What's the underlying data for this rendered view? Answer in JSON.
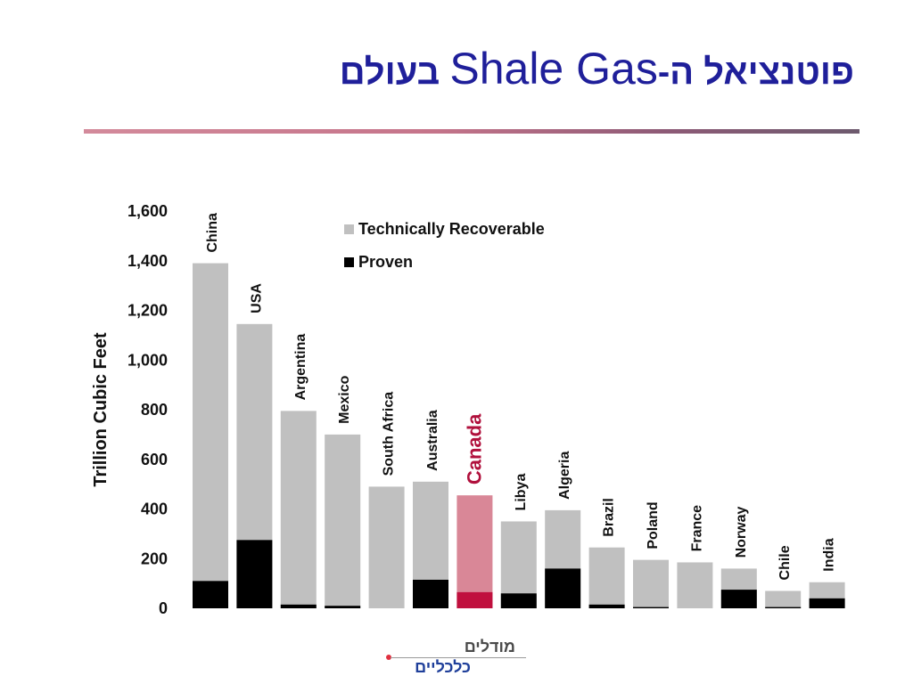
{
  "slide": {
    "title_he_prefix": "פוטנציאל ה-",
    "title_en": "Shale Gas",
    "title_he_suffix": " בעולם"
  },
  "logo": {
    "line1": "מודלים",
    "line2": "כלכליים"
  },
  "colors": {
    "title": "#1f1f9a",
    "recoverable": "#c0c0c0",
    "proven": "#000000",
    "highlight_recoverable": "#d98797",
    "highlight_proven": "#c0103e",
    "highlight_label": "#b0103c"
  },
  "chart_data": {
    "type": "bar",
    "stacked": "overlay",
    "ylabel": "Trillion Cubic Feet",
    "ylim": [
      0,
      1600
    ],
    "yticks": [
      0,
      200,
      400,
      600,
      800,
      1000,
      1200,
      1400,
      1600
    ],
    "ytick_labels": [
      "0",
      "200",
      "400",
      "600",
      "800",
      "1,000",
      "1,200",
      "1,400",
      "1,600"
    ],
    "legend": [
      "Technically Recoverable",
      "Proven"
    ],
    "legend_position": "top-center",
    "categories": [
      "China",
      "USA",
      "Argentina",
      "Mexico",
      "South Africa",
      "Australia",
      "Canada",
      "Libya",
      "Algeria",
      "Brazil",
      "Poland",
      "France",
      "Norway",
      "Chile",
      "India"
    ],
    "highlight": "Canada",
    "series": [
      {
        "name": "Technically Recoverable",
        "values": [
          1390,
          1145,
          795,
          700,
          490,
          510,
          455,
          350,
          395,
          245,
          195,
          185,
          160,
          70,
          105
        ]
      },
      {
        "name": "Proven",
        "values": [
          110,
          275,
          15,
          10,
          0,
          115,
          65,
          60,
          160,
          15,
          5,
          0,
          75,
          5,
          40
        ]
      }
    ]
  }
}
